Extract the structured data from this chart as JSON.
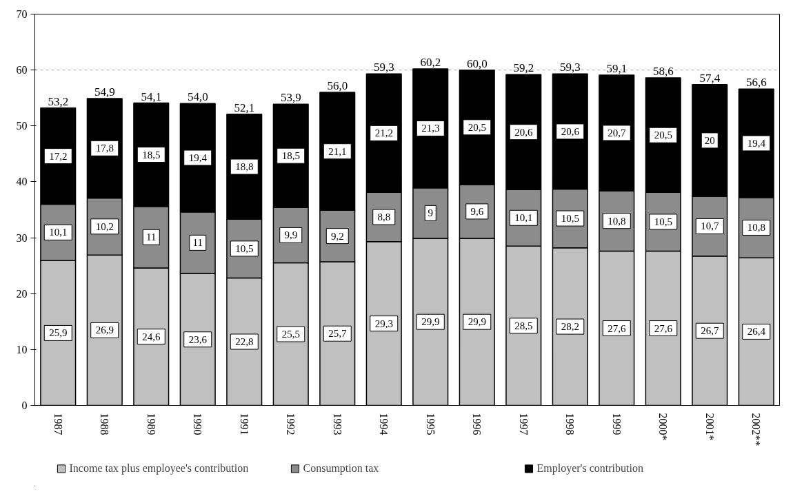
{
  "chart_data": {
    "type": "bar",
    "stacked": true,
    "categories": [
      "1987",
      "1988",
      "1989",
      "1990",
      "1991",
      "1992",
      "1993",
      "1994",
      "1995",
      "1996",
      "1997",
      "1998",
      "1999",
      "2000*",
      "2001*",
      "2002**"
    ],
    "series": [
      {
        "name": "Income tax plus employee's contribution",
        "color": "#c0c0c0",
        "values": [
          25.9,
          26.9,
          24.6,
          23.6,
          22.8,
          25.5,
          25.7,
          29.3,
          29.9,
          29.9,
          28.5,
          28.2,
          27.6,
          27.6,
          26.7,
          26.4
        ],
        "value_labels": [
          "25,9",
          "26,9",
          "24,6",
          "23,6",
          "22,8",
          "25,5",
          "25,7",
          "29,3",
          "29,9",
          "29,9",
          "28,5",
          "28,2",
          "27,6",
          "27,6",
          "26,7",
          "26,4"
        ]
      },
      {
        "name": "Consumption tax",
        "color": "#8c8c8c",
        "values": [
          10.1,
          10.2,
          11,
          11,
          10.5,
          9.9,
          9.2,
          8.8,
          9,
          9.6,
          10.1,
          10.5,
          10.8,
          10.5,
          10.7,
          10.8
        ],
        "value_labels": [
          "10,1",
          "10,2",
          "11",
          "11",
          "10,5",
          "9,9",
          "9,2",
          "8,8",
          "9",
          "9,6",
          "10,1",
          "10,5",
          "10,8",
          "10,5",
          "10,7",
          "10,8"
        ]
      },
      {
        "name": "Employer's contribution",
        "color": "#000000",
        "values": [
          17.2,
          17.8,
          18.5,
          19.4,
          18.8,
          18.5,
          21.1,
          21.2,
          21.3,
          20.5,
          20.6,
          20.6,
          20.7,
          20.5,
          20,
          19.4
        ],
        "value_labels": [
          "17,2",
          "17,8",
          "18,5",
          "19,4",
          "18,8",
          "18,5",
          "21,1",
          "21,2",
          "21,3",
          "20,5",
          "20,6",
          "20,6",
          "20,7",
          "20,5",
          "20",
          "19,4"
        ]
      }
    ],
    "totals": [
      "53,2",
      "54,9",
      "54,1",
      "54,0",
      "52,1",
      "53,9",
      "56,0",
      "59,3",
      "60,2",
      "60,0",
      "59,2",
      "59,3",
      "59,1",
      "58,6",
      "57,4",
      "56,6"
    ],
    "ylim": [
      0,
      70
    ],
    "yticks": [
      0,
      10,
      20,
      30,
      40,
      50,
      60,
      70
    ],
    "ref_lines": [
      {
        "axis": "y",
        "value": 60,
        "line_style": "dashed",
        "color": "#a0a0a0"
      }
    ],
    "grid": false,
    "legend": "bottom"
  }
}
